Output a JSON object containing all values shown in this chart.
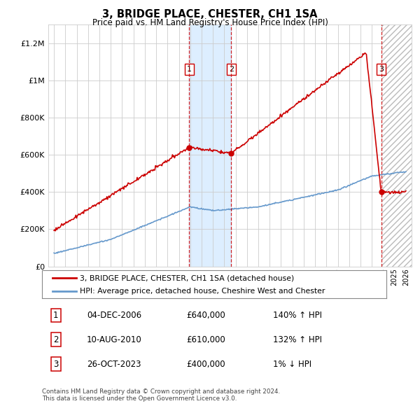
{
  "title": "3, BRIDGE PLACE, CHESTER, CH1 1SA",
  "subtitle": "Price paid vs. HM Land Registry's House Price Index (HPI)",
  "legend_line1": "3, BRIDGE PLACE, CHESTER, CH1 1SA (detached house)",
  "legend_line2": "HPI: Average price, detached house, Cheshire West and Chester",
  "sales": [
    {
      "num": 1,
      "date": "04-DEC-2006",
      "price": 640000,
      "pct": "140%",
      "dir": "↑",
      "year": 2006.92
    },
    {
      "num": 2,
      "date": "10-AUG-2010",
      "price": 610000,
      "pct": "132%",
      "dir": "↑",
      "year": 2010.62
    },
    {
      "num": 3,
      "date": "26-OCT-2023",
      "price": 400000,
      "pct": "1%",
      "dir": "↓",
      "year": 2023.82
    }
  ],
  "footnote1": "Contains HM Land Registry data © Crown copyright and database right 2024.",
  "footnote2": "This data is licensed under the Open Government Licence v3.0.",
  "ylim": [
    0,
    1300000
  ],
  "yticks": [
    0,
    200000,
    400000,
    600000,
    800000,
    1000000,
    1200000
  ],
  "xlim_start": 1994.5,
  "xlim_end": 2026.5,
  "property_color": "#cc0000",
  "hpi_color": "#6699cc",
  "vline_color": "#cc0000",
  "shade_color": "#ddeeff",
  "grid_color": "#cccccc"
}
